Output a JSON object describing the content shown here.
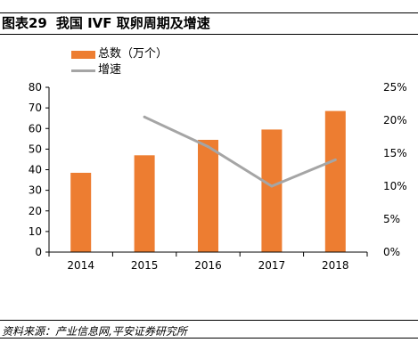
{
  "header": {
    "figure_label": "图表29",
    "title": "我国 IVF 取卵周期及增速"
  },
  "legend": {
    "bar_label": "总数（万个）",
    "line_label": "增速"
  },
  "colors": {
    "bar": "#ED7D31",
    "line": "#A5A5A5",
    "axis": "#000000"
  },
  "chart_data": {
    "type": "bar",
    "categories": [
      "2014",
      "2015",
      "2016",
      "2017",
      "2018"
    ],
    "series": [
      {
        "name": "总数（万个）",
        "type": "bar",
        "axis": "left",
        "values": [
          38.5,
          47,
          54.5,
          59.5,
          68.5
        ]
      },
      {
        "name": "增速",
        "type": "line",
        "axis": "right",
        "values": [
          null,
          0.205,
          0.16,
          0.1,
          0.14
        ]
      }
    ],
    "y_left": {
      "min": 0,
      "max": 80,
      "ticks": [
        0,
        10,
        20,
        30,
        40,
        50,
        60,
        70,
        80
      ]
    },
    "y_right": {
      "min": 0,
      "max": 0.25,
      "ticks": [
        "0%",
        "5%",
        "10%",
        "15%",
        "20%",
        "25%"
      ]
    },
    "grid": false,
    "legend_position": "top-left"
  },
  "footer": {
    "source": "资料来源：产业信息网,平安证券研究所"
  }
}
